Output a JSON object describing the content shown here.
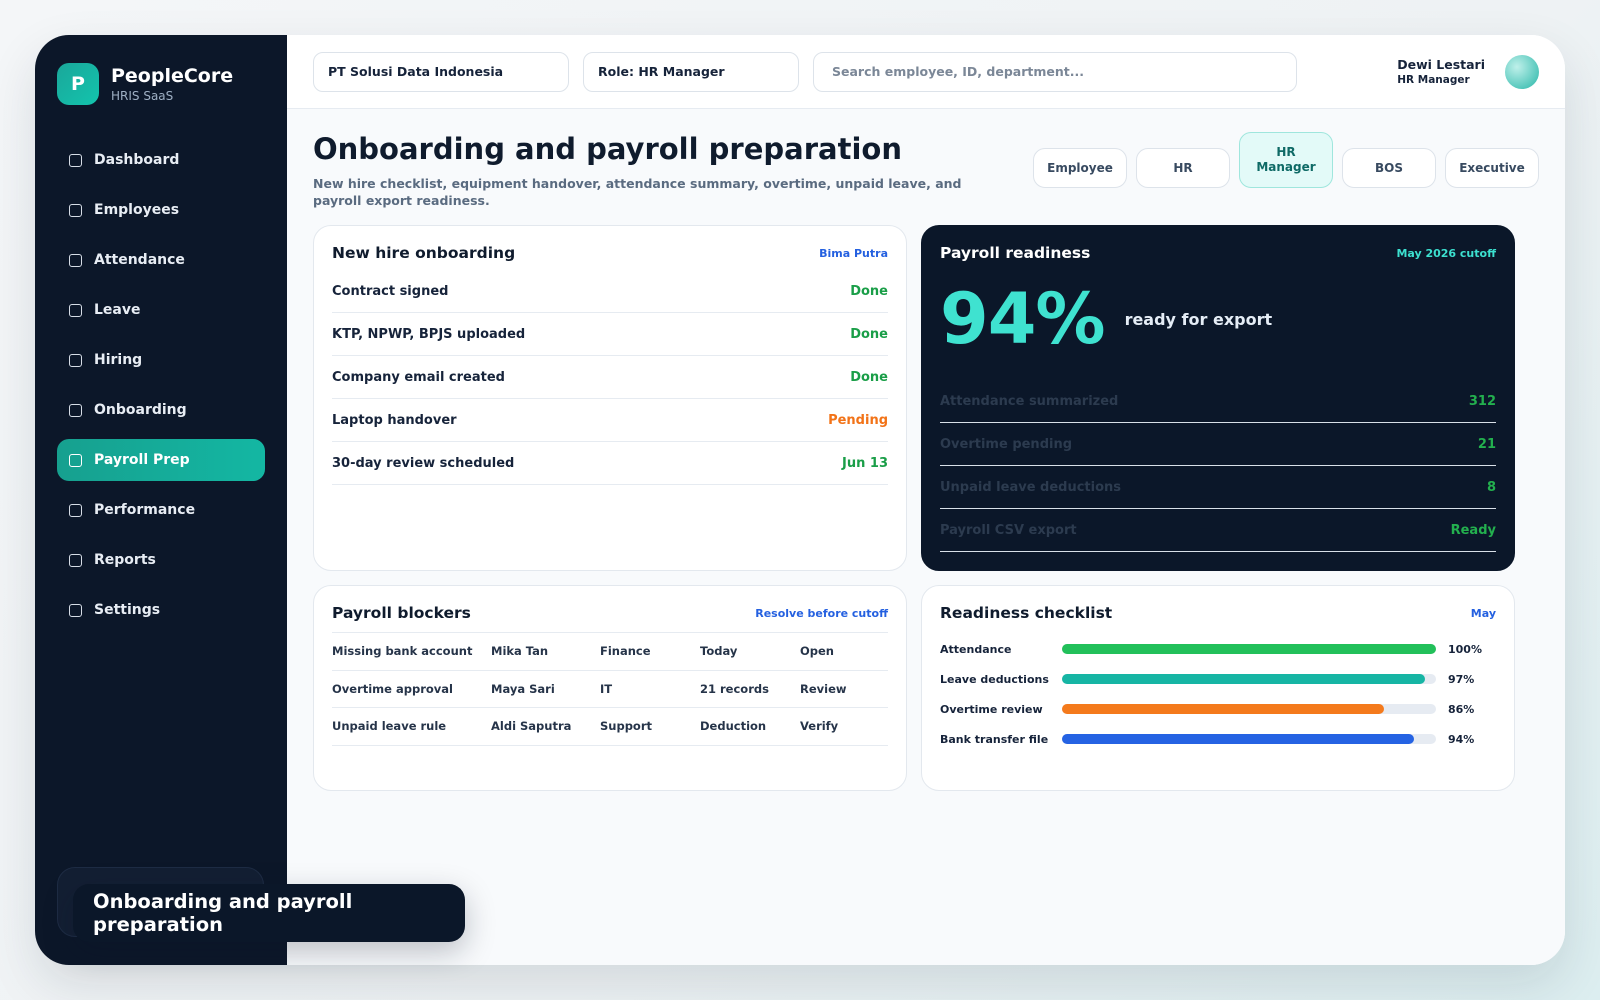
{
  "brand": {
    "logo_letter": "P",
    "name": "PeopleCore",
    "subtitle": "HRIS SaaS"
  },
  "sidebar": {
    "items": [
      {
        "label": "Dashboard"
      },
      {
        "label": "Employees"
      },
      {
        "label": "Attendance"
      },
      {
        "label": "Leave"
      },
      {
        "label": "Hiring"
      },
      {
        "label": "Onboarding"
      },
      {
        "label": "Payroll Prep",
        "active": true
      },
      {
        "label": "Performance"
      },
      {
        "label": "Reports"
      },
      {
        "label": "Settings"
      }
    ]
  },
  "topbar": {
    "company": "PT Solusi Data Indonesia",
    "role": "Role: HR Manager",
    "search_placeholder": "Search employee, ID, department...",
    "user": {
      "name": "Dewi Lestari",
      "role": "HR Manager"
    }
  },
  "page": {
    "title": "Onboarding and payroll preparation",
    "description": "New hire checklist, equipment handover, attendance summary, overtime, unpaid leave, and payroll export readiness."
  },
  "role_tabs": [
    {
      "label": "Employee"
    },
    {
      "label": "HR"
    },
    {
      "label": "HR Manager",
      "active": true
    },
    {
      "label": "BOS"
    },
    {
      "label": "Executive"
    }
  ],
  "onboarding": {
    "title": "New hire onboarding",
    "employee": "Bima Putra",
    "tasks": [
      {
        "label": "Contract signed",
        "status": "Done",
        "state": "done"
      },
      {
        "label": "KTP, NPWP, BPJS uploaded",
        "status": "Done",
        "state": "done"
      },
      {
        "label": "Company email created",
        "status": "Done",
        "state": "done"
      },
      {
        "label": "Laptop handover",
        "status": "Pending",
        "state": "pending"
      },
      {
        "label": "30-day review scheduled",
        "status": "Jun 13",
        "state": "done"
      }
    ]
  },
  "payroll_readiness": {
    "title": "Payroll readiness",
    "cutoff": "May 2026 cutoff",
    "percent": "94%",
    "percent_label": "ready for export",
    "rows": [
      {
        "label": "Attendance summarized",
        "value": "312"
      },
      {
        "label": "Overtime pending",
        "value": "21"
      },
      {
        "label": "Unpaid leave deductions",
        "value": "8"
      },
      {
        "label": "Payroll CSV export",
        "value": "Ready"
      }
    ]
  },
  "blockers": {
    "title": "Payroll blockers",
    "action": "Resolve before cutoff",
    "rows": [
      [
        "Missing bank account",
        "Mika Tan",
        "Finance",
        "Today",
        "Open"
      ],
      [
        "Overtime approval",
        "Maya Sari",
        "IT",
        "21 records",
        "Review"
      ],
      [
        "Unpaid leave rule",
        "Aldi Saputra",
        "Support",
        "Deduction",
        "Verify"
      ]
    ]
  },
  "checklist": {
    "title": "Readiness checklist",
    "period": "May",
    "items": [
      {
        "label": "Attendance",
        "value": 100,
        "text": "100%",
        "color": "#22c05a"
      },
      {
        "label": "Leave deductions",
        "value": 97,
        "text": "97%",
        "color": "#16b5a4"
      },
      {
        "label": "Overtime review",
        "value": 86,
        "text": "86%",
        "color": "#f47a1c"
      },
      {
        "label": "Bank transfer file",
        "value": 94,
        "text": "94%",
        "color": "#2563e3"
      }
    ]
  },
  "toast": {
    "text": "Onboarding and payroll preparation"
  }
}
